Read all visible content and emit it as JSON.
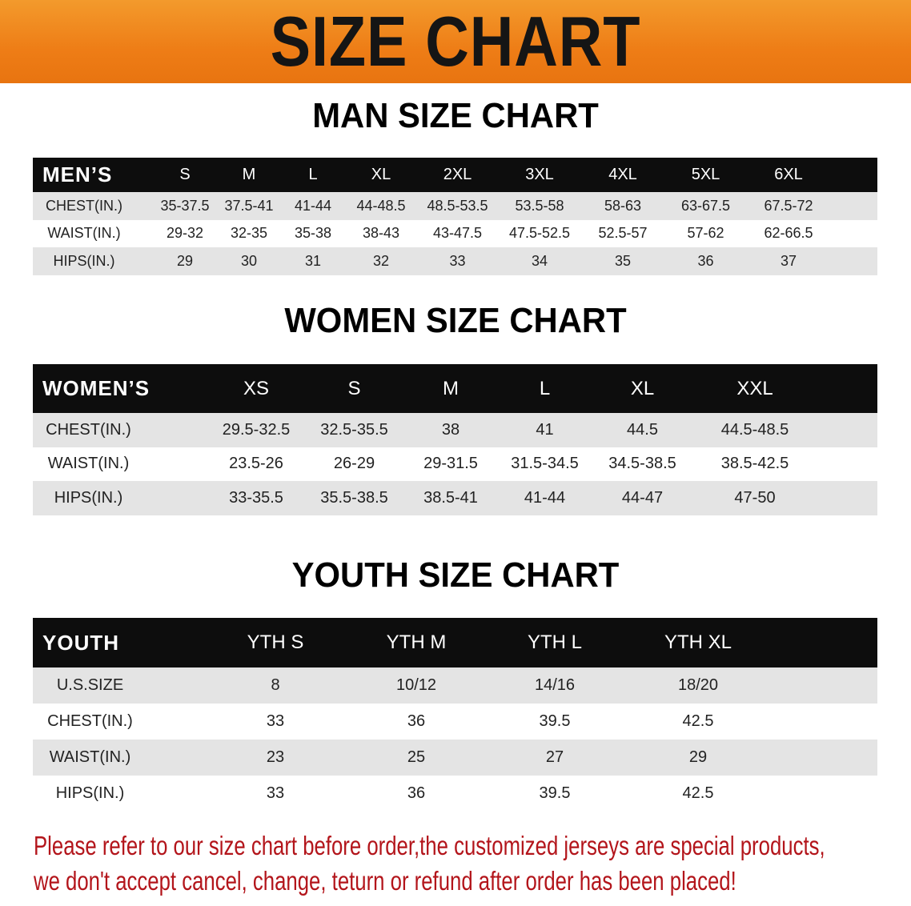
{
  "banner": {
    "title": "SIZE CHART",
    "color": "#ee7d16"
  },
  "men": {
    "title": "MAN SIZE CHART",
    "header": [
      "MEN’S",
      "S",
      "M",
      "L",
      "XL",
      "2XL",
      "3XL",
      "4XL",
      "5XL",
      "6XL"
    ],
    "rows": [
      [
        "CHEST(IN.)",
        "35-37.5",
        "37.5-41",
        "41-44",
        "44-48.5",
        "48.5-53.5",
        "53.5-58",
        "58-63",
        "63-67.5",
        "67.5-72"
      ],
      [
        "WAIST(IN.)",
        "29-32",
        "32-35",
        "35-38",
        "38-43",
        "43-47.5",
        "47.5-52.5",
        "52.5-57",
        "57-62",
        "62-66.5"
      ],
      [
        "HIPS(IN.)",
        "29",
        "30",
        "31",
        "32",
        "33",
        "34",
        "35",
        "36",
        "37"
      ]
    ]
  },
  "women": {
    "title": "WOMEN SIZE CHART",
    "header": [
      "WOMEN’S",
      "XS",
      "S",
      "M",
      "L",
      "XL",
      "XXL"
    ],
    "rows": [
      [
        "CHEST(IN.)",
        "29.5-32.5",
        "32.5-35.5",
        "38",
        "41",
        "44.5",
        "44.5-48.5"
      ],
      [
        "WAIST(IN.)",
        "23.5-26",
        "26-29",
        "29-31.5",
        "31.5-34.5",
        "34.5-38.5",
        "38.5-42.5"
      ],
      [
        "HIPS(IN.)",
        "33-35.5",
        "35.5-38.5",
        "38.5-41",
        "41-44",
        "44-47",
        "47-50"
      ]
    ]
  },
  "youth": {
    "title": "YOUTH SIZE CHART",
    "header": [
      "YOUTH",
      "YTH S",
      "YTH M",
      "YTH L",
      "YTH XL"
    ],
    "rows": [
      [
        "U.S.SIZE",
        "8",
        "10/12",
        "14/16",
        "18/20"
      ],
      [
        "CHEST(IN.)",
        "33",
        "36",
        "39.5",
        "42.5"
      ],
      [
        "WAIST(IN.)",
        "23",
        "25",
        "27",
        "29"
      ],
      [
        "HIPS(IN.)",
        "33",
        "36",
        "39.5",
        "42.5"
      ]
    ]
  },
  "notice": {
    "line1": "Please refer to our size chart before order,the customized jerseys are special products,",
    "line2": "we don't accept cancel, change, teturn or refund after order has been placed!",
    "color": "#b3151b"
  }
}
